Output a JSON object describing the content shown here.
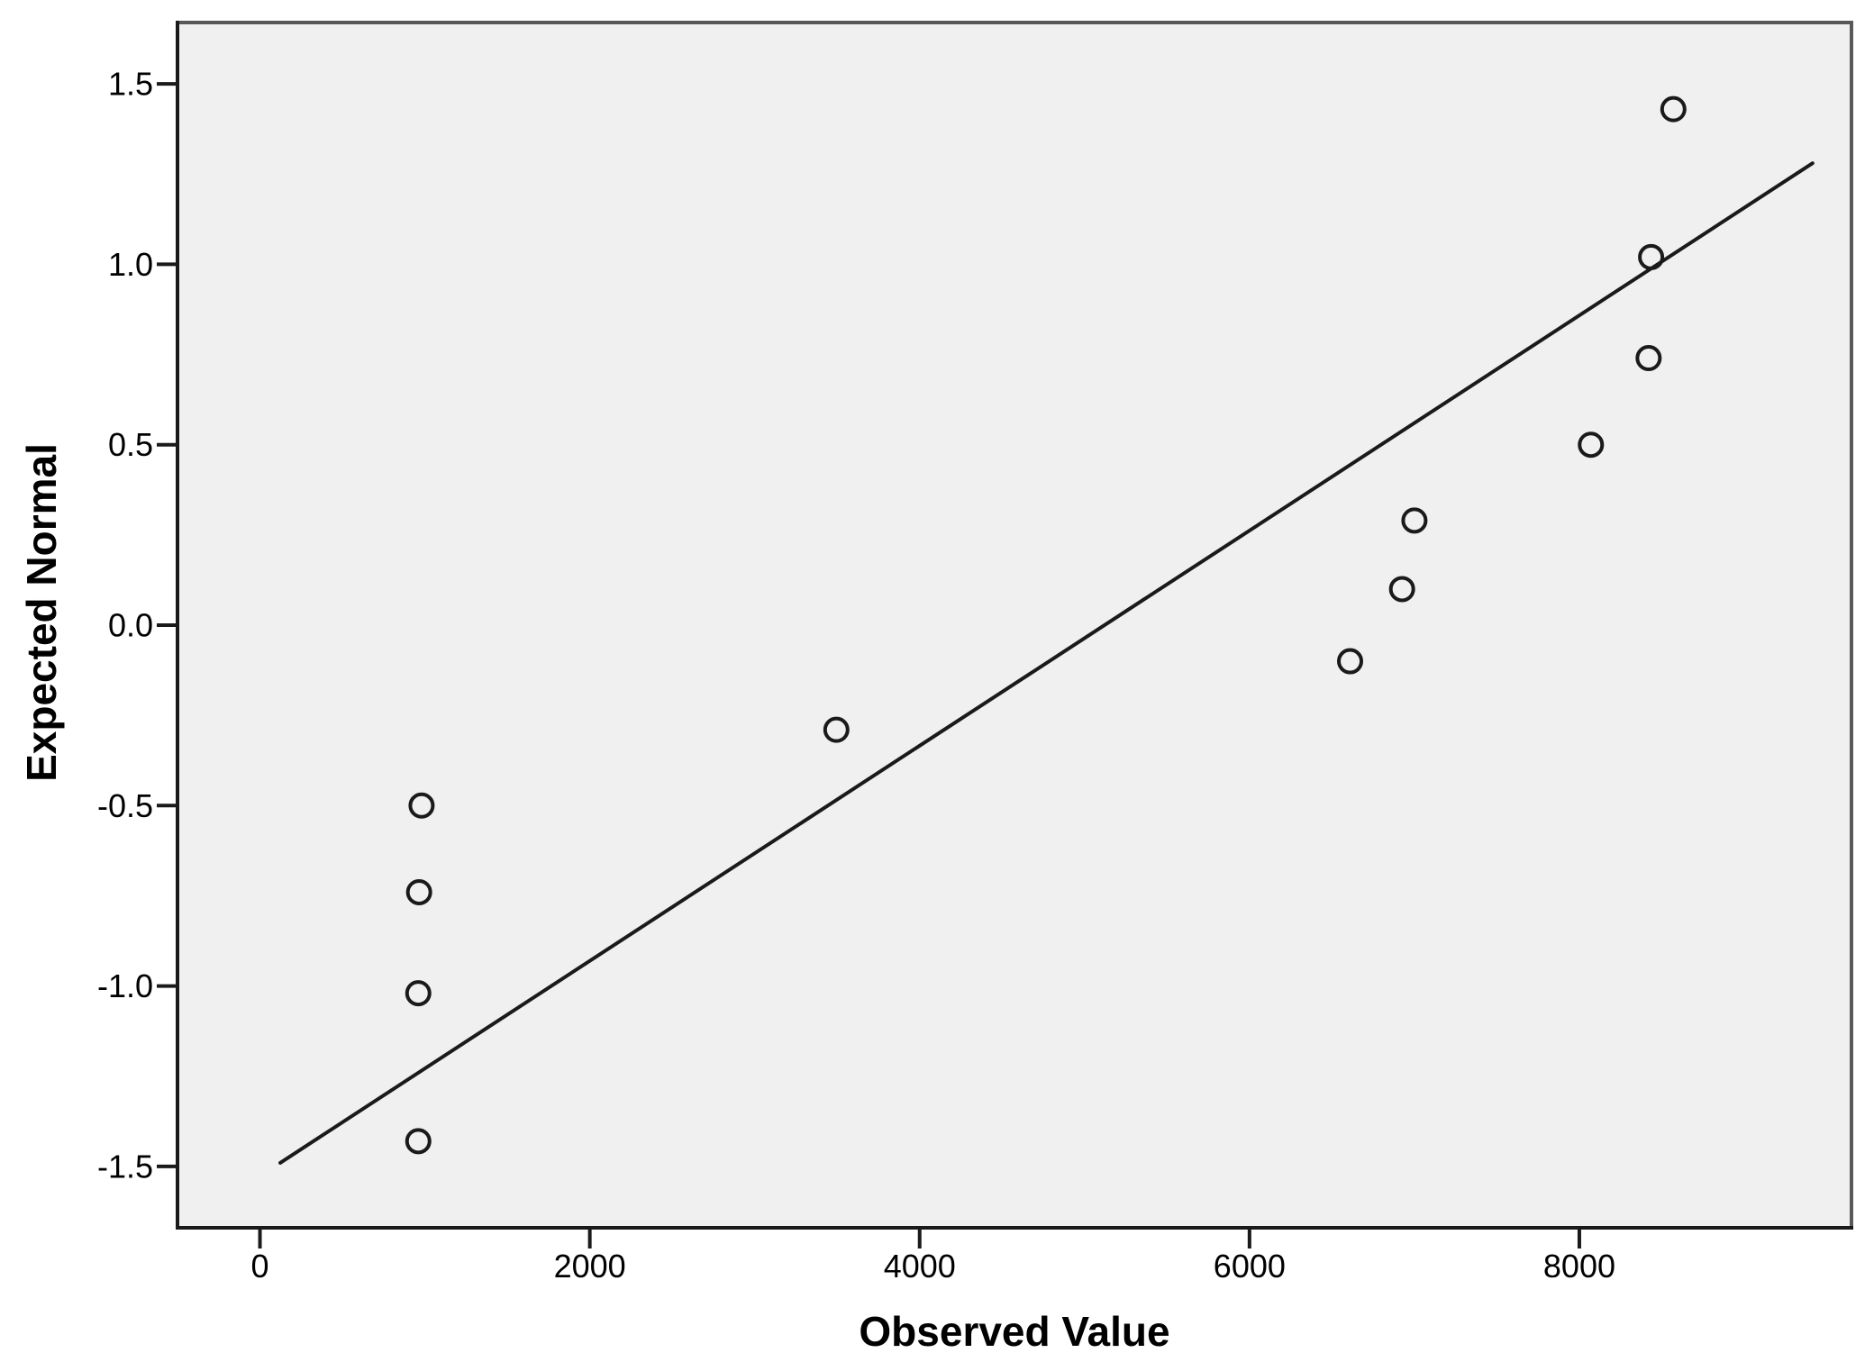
{
  "figure": {
    "background": "#ffffff",
    "kind": "normal-qq-plot"
  },
  "chart_data": {
    "type": "scatter",
    "title": "",
    "xlabel": "Observed Value",
    "ylabel": "Expected Normal",
    "xlim": [
      -500,
      9650
    ],
    "ylim": [
      -1.67,
      1.67
    ],
    "grid": false,
    "legend": null,
    "x_ticks": {
      "values": [
        0,
        2000,
        4000,
        6000,
        8000
      ],
      "labels": [
        "0",
        "2000",
        "4000",
        "6000",
        "8000"
      ]
    },
    "y_ticks": {
      "values": [
        1.5,
        1.0,
        0.5,
        0.0,
        -0.5,
        -1.0,
        -1.5
      ],
      "labels": [
        "1.5",
        "1.0",
        "0.5",
        "0.0",
        "-0.5",
        "-1.0",
        "-1.5"
      ]
    },
    "points": [
      {
        "observed": 960,
        "expected": -1.43
      },
      {
        "observed": 960,
        "expected": -1.02
      },
      {
        "observed": 965,
        "expected": -0.74
      },
      {
        "observed": 980,
        "expected": -0.5
      },
      {
        "observed": 3495,
        "expected": -0.29
      },
      {
        "observed": 6610,
        "expected": -0.1
      },
      {
        "observed": 6925,
        "expected": 0.1
      },
      {
        "observed": 7000,
        "expected": 0.29
      },
      {
        "observed": 8070,
        "expected": 0.5
      },
      {
        "observed": 8420,
        "expected": 0.74
      },
      {
        "observed": 8435,
        "expected": 1.02
      },
      {
        "observed": 8570,
        "expected": 1.43
      }
    ],
    "reference_line": {
      "x1": 123,
      "y1": -1.49,
      "x2": 9414,
      "y2": 1.28
    },
    "colors": {
      "plot_bg": "#f0f0f0",
      "frame": "#595959",
      "axis": "#1a1a1a",
      "marker": "#1a1a1a",
      "ref_line": "#1a1a1a",
      "text": "#000000"
    }
  }
}
